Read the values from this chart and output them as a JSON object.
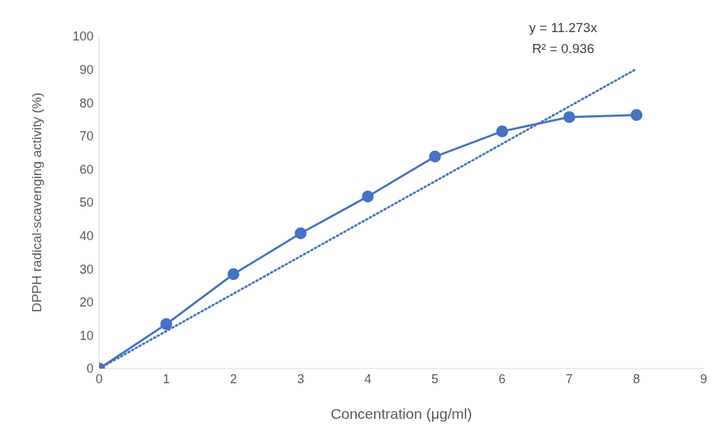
{
  "chart_data": {
    "type": "line",
    "xlabel": "Concentration (μg/ml)",
    "ylabel": "DPPH radical-scavenging activity (%)",
    "x": [
      0,
      1,
      2,
      3,
      4,
      5,
      6,
      7,
      8
    ],
    "series": [
      {
        "color": "#4472c4",
        "values": [
          0,
          13.4,
          28.4,
          40.7,
          51.8,
          63.8,
          71.4,
          75.7,
          76.3
        ],
        "marker": "circle",
        "line_style": "solid"
      },
      {
        "type": "line",
        "color": "#4472c4",
        "x": [
          0,
          8
        ],
        "values": [
          0,
          90.18
        ],
        "marker": "none",
        "line_style": "dotted"
      }
    ],
    "annotations": [
      "y = 11.273x",
      "R² = 0.936"
    ],
    "xlim": [
      0,
      9
    ],
    "xticks": [
      0,
      1,
      2,
      3,
      4,
      5,
      6,
      7,
      8,
      9
    ],
    "ylim": [
      0,
      100
    ],
    "yticks": [
      0,
      10,
      20,
      30,
      40,
      50,
      60,
      70,
      80,
      90,
      100
    ],
    "grid": false,
    "legend": false
  }
}
